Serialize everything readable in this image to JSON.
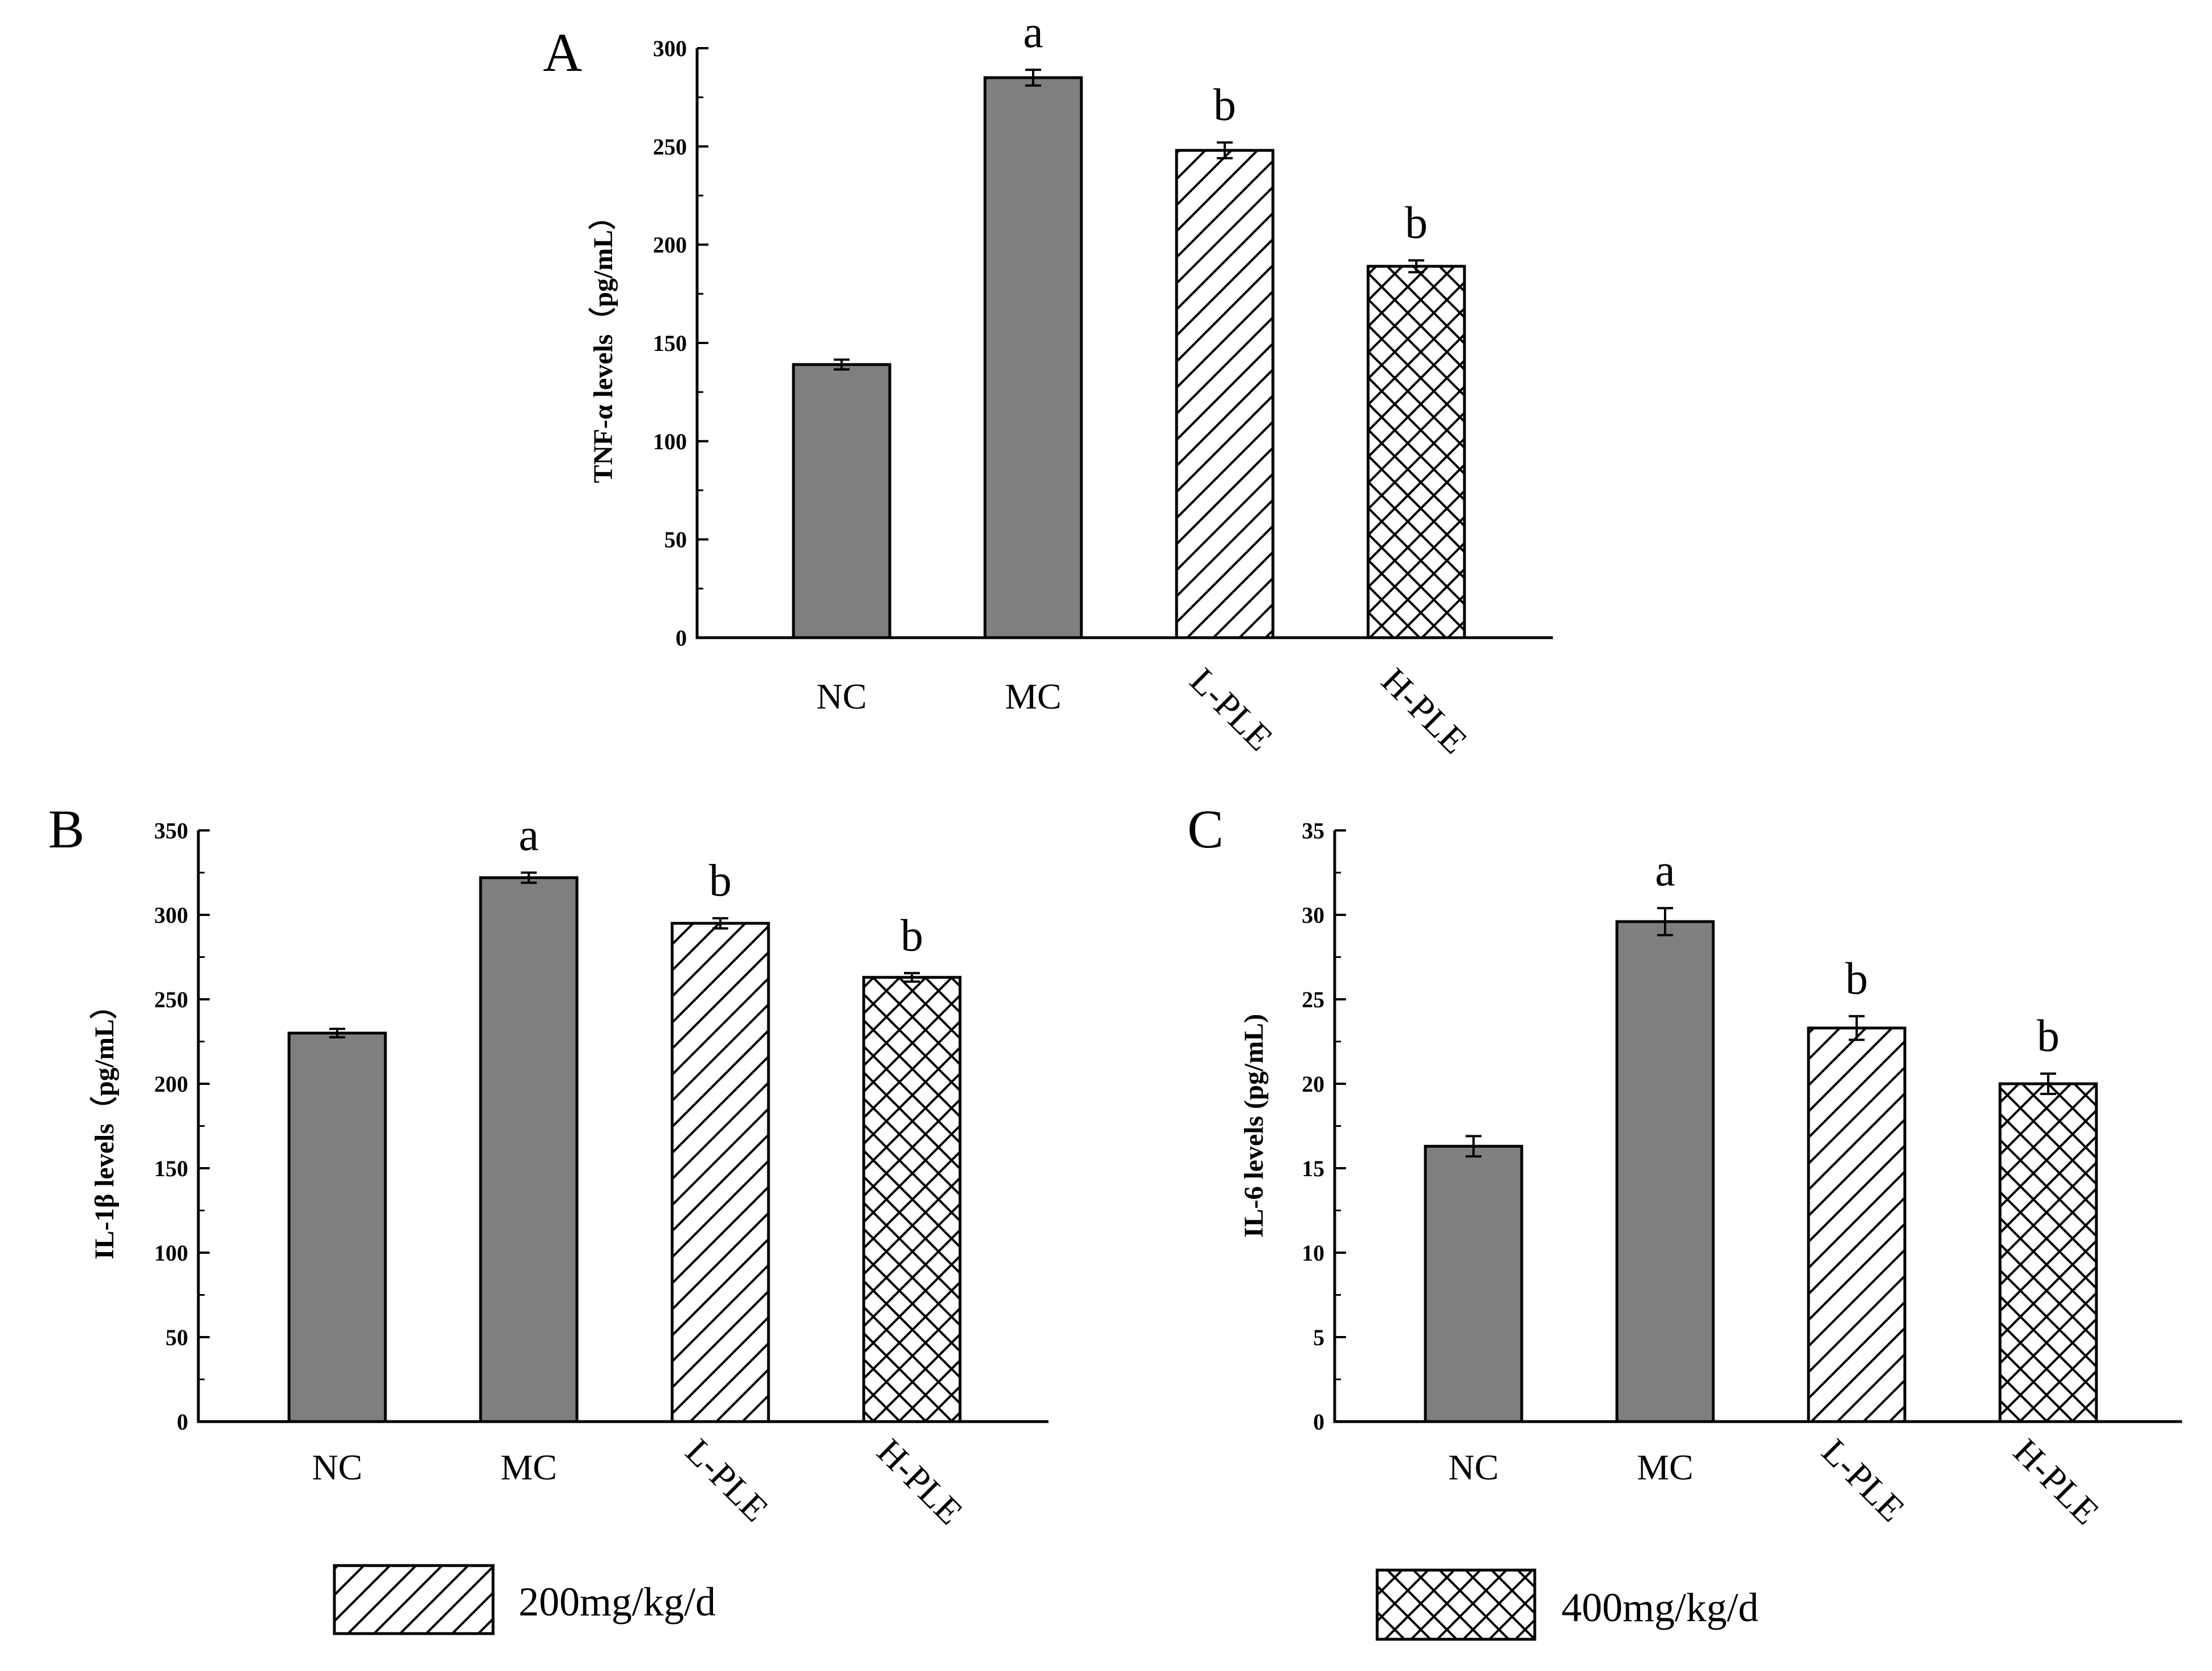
{
  "chart_data": [
    {
      "type": "bar",
      "panel": "A",
      "categories": [
        "NC",
        "MC",
        "L-PLE",
        "H-PLE"
      ],
      "values": [
        139,
        285,
        248,
        189
      ],
      "errors": [
        2.5,
        4,
        4,
        3
      ],
      "significance": [
        "",
        "a",
        "b",
        "b"
      ],
      "fills": [
        "solid",
        "solid",
        "hatch",
        "crosshatch"
      ],
      "ylabel": "TNF-α levels（pg/mL）",
      "ylim": [
        0,
        300
      ],
      "yticks": [
        "0",
        "50",
        "100",
        "150",
        "200",
        "250",
        "300"
      ]
    },
    {
      "type": "bar",
      "panel": "B",
      "categories": [
        "NC",
        "MC",
        "L-PLE",
        "H-PLE"
      ],
      "values": [
        230,
        322,
        295,
        263
      ],
      "errors": [
        2.5,
        3,
        3,
        2.5
      ],
      "significance": [
        "",
        "a",
        "b",
        "b"
      ],
      "fills": [
        "solid",
        "solid",
        "hatch",
        "crosshatch"
      ],
      "ylabel": "IL-1β levels（pg/mL）",
      "ylim": [
        0,
        350
      ],
      "yticks": [
        "0",
        "50",
        "100",
        "150",
        "200",
        "250",
        "300",
        "350"
      ]
    },
    {
      "type": "bar",
      "panel": "C",
      "categories": [
        "NC",
        "MC",
        "L-PLE",
        "H-PLE"
      ],
      "values": [
        16.3,
        29.6,
        23.3,
        20
      ],
      "errors": [
        0.6,
        0.8,
        0.7,
        0.6
      ],
      "significance": [
        "",
        "a",
        "b",
        "b"
      ],
      "fills": [
        "solid",
        "solid",
        "hatch",
        "crosshatch"
      ],
      "ylabel": "IL-6 levels (pg/mL)",
      "ylim": [
        0,
        35
      ],
      "yticks": [
        "0",
        "5",
        "10",
        "15",
        "20",
        "25",
        "30",
        "35"
      ]
    }
  ],
  "legend": [
    {
      "label": "200mg/kg/d",
      "fill": "hatch"
    },
    {
      "label": "400mg/kg/d",
      "fill": "crosshatch"
    }
  ],
  "colors": {
    "solid_bar": "#7f7f7f",
    "stroke": "#000000",
    "background": "#ffffff"
  }
}
